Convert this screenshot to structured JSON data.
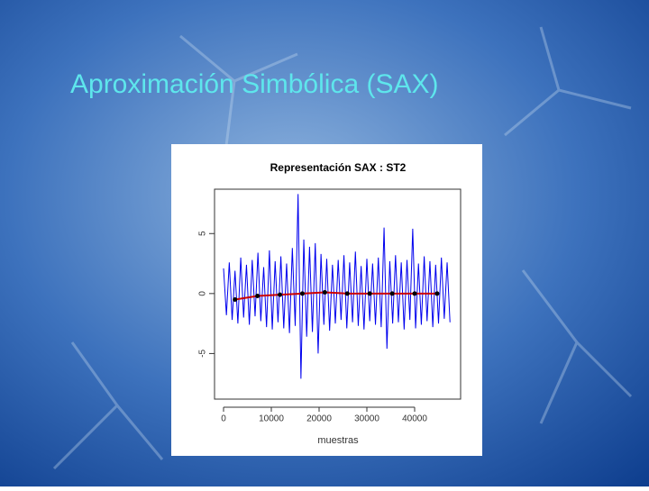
{
  "slide_title": "Aproximación Simbólica (SAX)",
  "chart_data": {
    "type": "line",
    "title": "Representación SAX : ST2",
    "x_label": "muestras",
    "xlim": [
      -1887,
      49623
    ],
    "xticks": [
      0,
      10000,
      20000,
      30000,
      40000
    ],
    "ylim": [
      -8.8,
      8.7
    ],
    "yticks": [
      -5,
      0,
      5
    ],
    "series": [
      {
        "color": "#0000ee",
        "x": [
          0,
          600,
          1200,
          1800,
          2400,
          3000,
          3600,
          4200,
          4800,
          5400,
          6000,
          6600,
          7200,
          7800,
          8400,
          9000,
          9600,
          10200,
          10800,
          11400,
          12000,
          12600,
          13200,
          13800,
          14400,
          15000,
          15600,
          16200,
          16800,
          17400,
          18000,
          18600,
          19200,
          19800,
          20400,
          21000,
          21600,
          22200,
          22800,
          23400,
          24000,
          24600,
          25200,
          25800,
          26400,
          27000,
          27600,
          28200,
          28800,
          29400,
          30000,
          30600,
          31200,
          31800,
          32400,
          33000,
          33600,
          34200,
          34800,
          35400,
          36000,
          36600,
          37200,
          37800,
          38400,
          39000,
          39600,
          40200,
          40800,
          41400,
          42000,
          42600,
          43200,
          43800,
          44400,
          45000,
          45600,
          46200,
          46800,
          47400
        ],
        "values": [
          2.1,
          -1.8,
          2.6,
          -2.2,
          1.9,
          -2.5,
          3.0,
          -2.0,
          2.4,
          -2.6,
          2.8,
          -1.9,
          3.4,
          -2.3,
          2.2,
          -2.8,
          3.6,
          -3.0,
          2.7,
          -2.4,
          3.1,
          -2.9,
          2.5,
          -3.3,
          3.8,
          -2.7,
          8.3,
          -7.1,
          4.5,
          -3.6,
          3.9,
          -3.2,
          4.2,
          -5.0,
          3.3,
          -2.6,
          2.9,
          -3.1,
          2.4,
          -2.5,
          2.8,
          -2.2,
          3.2,
          -2.9,
          2.6,
          -2.4,
          3.5,
          -2.7,
          2.3,
          -3.0,
          2.9,
          -2.3,
          2.5,
          -2.6,
          3.0,
          -2.8,
          5.5,
          -4.6,
          2.7,
          -2.5,
          3.2,
          -2.4,
          2.6,
          -3.0,
          2.8,
          -2.2,
          5.4,
          -2.9,
          2.5,
          -2.6,
          3.1,
          -2.3,
          2.7,
          -2.8,
          2.4,
          -2.5,
          3.0,
          -2.1,
          2.6,
          -2.4
        ]
      },
      {
        "color": "#cc0000",
        "marker_color": "#000000",
        "x": [
          2400,
          7100,
          11800,
          16500,
          21200,
          25900,
          30600,
          35300,
          40000,
          44700
        ],
        "values": [
          -0.5,
          -0.2,
          -0.1,
          0.0,
          0.1,
          0.0,
          0.0,
          0.0,
          0.0,
          0.0
        ]
      }
    ]
  }
}
